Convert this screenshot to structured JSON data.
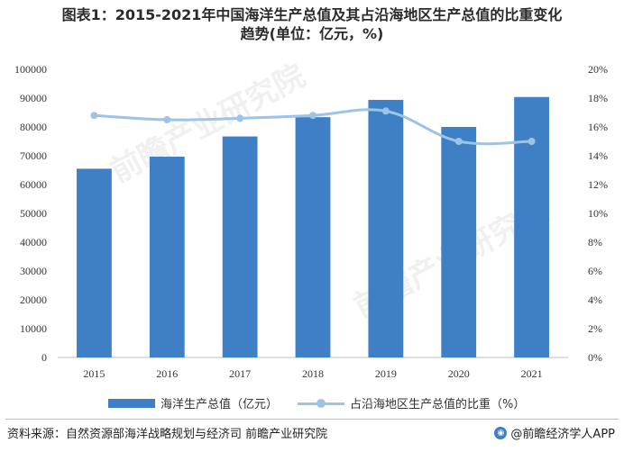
{
  "title_line1": "图表1：2015-2021年中国海洋生产总值及其占沿海地区生产总值的比重变化",
  "title_line2": "趋势(单位：亿元，%)",
  "chart_data": {
    "type": "bar",
    "categories": [
      "2015",
      "2016",
      "2017",
      "2018",
      "2019",
      "2020",
      "2021"
    ],
    "series": [
      {
        "name": "海洋生产总值（亿元）",
        "type": "bar",
        "axis": "left",
        "values": [
          65500,
          69700,
          76700,
          83400,
          89400,
          80000,
          90400
        ],
        "color": "#3f7fc6"
      },
      {
        "name": "占沿海地区生产总值的比重（%）",
        "type": "line",
        "axis": "right",
        "values": [
          16.8,
          16.5,
          16.6,
          16.8,
          17.1,
          15.0,
          15.0
        ],
        "color": "#9dc3e6"
      }
    ],
    "y_left": {
      "min": 0,
      "max": 100000,
      "ticks": [
        "0",
        "10000",
        "20000",
        "30000",
        "40000",
        "50000",
        "60000",
        "70000",
        "80000",
        "90000",
        "100000"
      ]
    },
    "y_right": {
      "min": 0,
      "max": 20,
      "ticks": [
        "0%",
        "2%",
        "4%",
        "6%",
        "8%",
        "10%",
        "12%",
        "14%",
        "16%",
        "18%",
        "20%"
      ]
    },
    "grid": false,
    "legend_position": "bottom"
  },
  "legend": {
    "bar_label": "海洋生产总值（亿元）",
    "line_label": "占沿海地区生产总值的比重（%）"
  },
  "source": "资料来源：自然资源部海洋战略规划与经济司 前瞻产业研究院",
  "brand": "@前瞻经济学人APP",
  "watermark": "前瞻产业研究院"
}
